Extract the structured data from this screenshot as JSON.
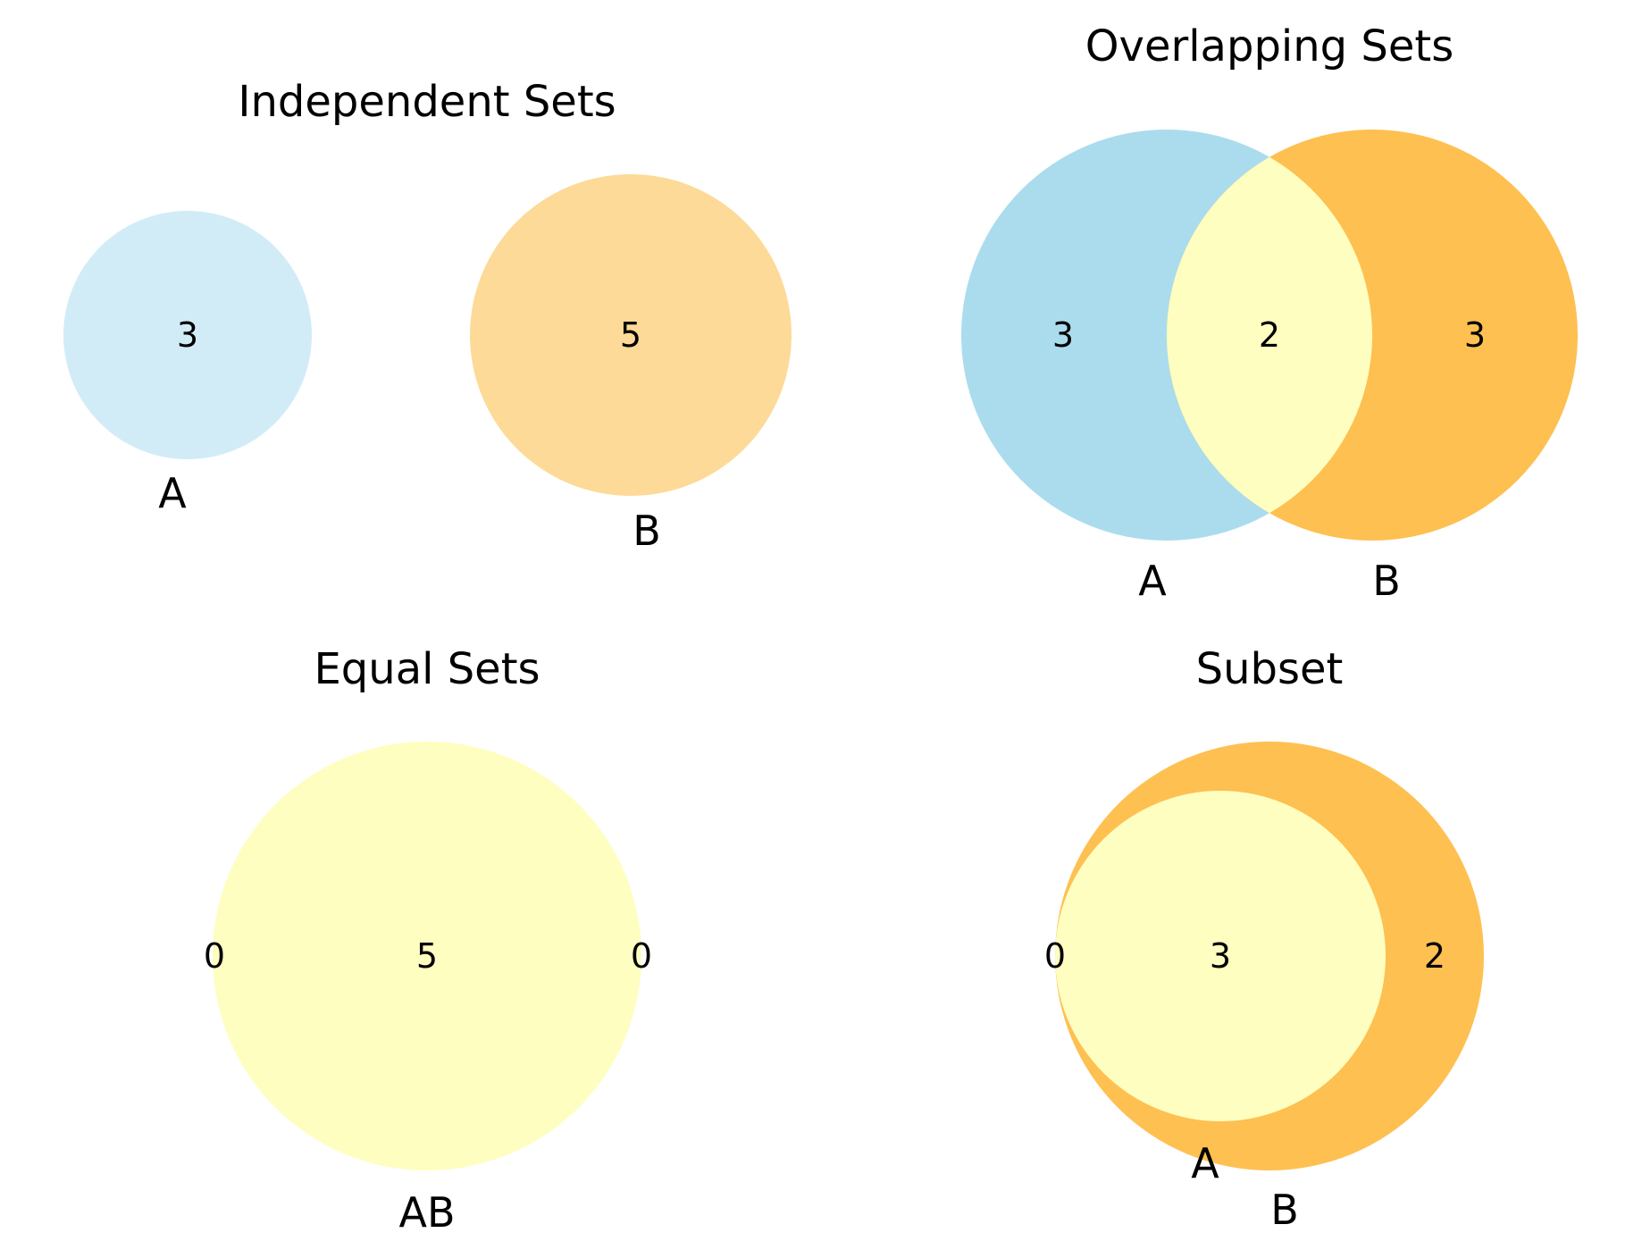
{
  "colors": {
    "independent_a": "#d2ecf7",
    "independent_b": "#fdda98",
    "overlap_a": "#aadcee",
    "overlap_b": "#fec051",
    "intersection": "#fefec0",
    "subset_outer": "#fec051",
    "equal_fill": "#fefec0"
  },
  "panels": {
    "independent": {
      "title": "Independent Sets",
      "count_a": "3",
      "count_b": "5",
      "label_a": "A",
      "label_b": "B"
    },
    "overlapping": {
      "title": "Overlapping Sets",
      "count_a_only": "3",
      "count_ab": "2",
      "count_b_only": "3",
      "label_a": "A",
      "label_b": "B"
    },
    "equal": {
      "title": "Equal Sets",
      "count_a_only": "0",
      "count_ab": "5",
      "count_b_only": "0",
      "label_ab": "AB"
    },
    "subset": {
      "title": "Subset",
      "count_a_only": "0",
      "count_ab": "3",
      "count_b_only": "2",
      "label_a": "A",
      "label_b": "B"
    }
  }
}
